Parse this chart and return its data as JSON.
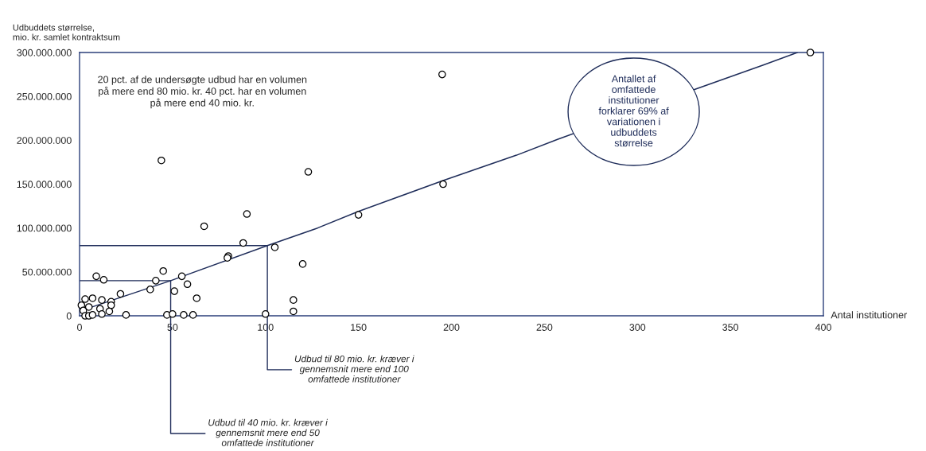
{
  "chart_data": {
    "type": "scatter",
    "ylabel": "Udbuddets størrelse,\nmio. kr. samlet kontraktsum",
    "xlabel": "Antal institutioner",
    "xlim": [
      0,
      400
    ],
    "xticks": [
      0,
      50,
      100,
      150,
      200,
      250,
      300,
      350,
      400
    ],
    "ylim": [
      0,
      300000000
    ],
    "yticks": [
      {
        "value": 0,
        "label": "0"
      },
      {
        "value": 50000000,
        "label": "50.000.000"
      },
      {
        "value": 100000000,
        "label": "100.000.000"
      },
      {
        "value": 150000000,
        "label": "150.000.000"
      },
      {
        "value": 200000000,
        "label": "200.000.000"
      },
      {
        "value": 250000000,
        "label": "250.000.000"
      },
      {
        "value": 300000000,
        "label": "300.000.000"
      }
    ],
    "grid": false,
    "series": [
      {
        "color": "#000000",
        "marker": "circle",
        "x": [
          44,
          123,
          90,
          67,
          88,
          105,
          80,
          79.5,
          120,
          45,
          9,
          13,
          41,
          55,
          58,
          38,
          51,
          22,
          63,
          3,
          7,
          12,
          17,
          17,
          1,
          5,
          11,
          16,
          2,
          12,
          3,
          5,
          7,
          25,
          47,
          50,
          56,
          61,
          100,
          115,
          115,
          150,
          195.5,
          195,
          393
        ],
        "values": [
          177000000,
          164000000,
          116000000,
          102000000,
          83000000,
          78000000,
          68000000,
          66000000,
          59000000,
          51000000,
          45000000,
          41000000,
          40000000,
          45000000,
          36000000,
          30000000,
          28000000,
          25000000,
          20000000,
          19000000,
          20000000,
          18000000,
          16000000,
          12000000,
          12000000,
          10000000,
          8000000,
          5000000,
          6000000,
          2000000,
          0,
          0,
          1000000,
          1000000,
          1000000,
          2000000,
          1000000,
          1000000,
          2000000,
          18000000,
          5000000,
          115000000,
          150000000,
          275000000,
          300000000
        ]
      },
      {
        "type": "line",
        "color": "#1f2d5a",
        "marker": "none",
        "line_style": "solid",
        "x": [
          1,
          49,
          101,
          128,
          150,
          195.5,
          235,
          257,
          331,
          368,
          386
        ],
        "values": [
          6000000,
          40000000,
          80000000,
          100000000,
          119000000,
          154000000,
          183000000,
          201000000,
          258000000,
          286000000,
          300000000
        ]
      }
    ],
    "annotations": [
      "20 pct. af de undersøgte udbud har en volumen\npå mere end 80 mio. kr. 40 pct. har en volumen\npå mere end 40 mio. kr.",
      "Antallet af\nomfattede\ninstitutioner\nforklarer 69% af\nvariationen i\nudbuddets\nstørrelse",
      {
        "text": "Udbud til 80 mio. kr. kræver i\ngennemsnit mere end 100\nomfattede institutioner",
        "x": 101,
        "y": 80000000
      },
      {
        "text": "Udbud til 40 mio. kr. kræver i\ngennemsnit mere end 50\nomfattede institutioner",
        "x": 49,
        "y": 40000000
      }
    ]
  }
}
